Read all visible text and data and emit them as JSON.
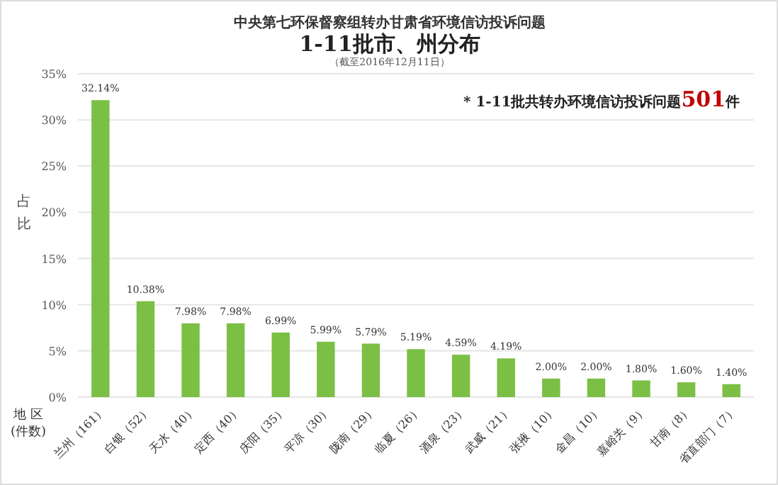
{
  "chart_data": {
    "type": "bar",
    "title": "中央第七环保督察组转办甘肃省环境信访投诉问题",
    "subtitle": "1-11批市、州分布",
    "annotations": [
      "（截至2016年12月11日）",
      "* 1-11批共转办环境信访投诉问题**501**件"
    ],
    "xlabel": "地 区\n(件数)",
    "ylabel": "占比",
    "categories": [
      "兰州（161）",
      "白银（52）",
      "天水（40）",
      "定西（40）",
      "庆阳（35）",
      "平凉（30）",
      "陇南（29）",
      "临夏（26）",
      "酒泉（23）",
      "武威（21）",
      "张掖（10）",
      "金昌（10）",
      "嘉峪关（9）",
      "甘南（8）",
      "省直部门（7）"
    ],
    "values": [
      32.14,
      10.38,
      7.98,
      7.98,
      6.99,
      5.99,
      5.79,
      5.19,
      4.59,
      4.19,
      2.0,
      2.0,
      1.8,
      1.6,
      1.4
    ],
    "value_labels": [
      "32.14%",
      "10.38%",
      "7.98%",
      "7.98%",
      "6.99%",
      "5.99%",
      "5.79%",
      "5.19%",
      "4.59%",
      "4.19%",
      "2.00%",
      "2.00%",
      "1.80%",
      "1.60%",
      "1.40%"
    ],
    "color": "#7cbf45",
    "ylim": [
      0,
      35
    ],
    "yticks": [
      {
        "value": 0,
        "label": "0%"
      },
      {
        "value": 5,
        "label": "5%"
      },
      {
        "value": 10,
        "label": "10%"
      },
      {
        "value": 15,
        "label": "15%"
      },
      {
        "value": 20,
        "label": "20%"
      },
      {
        "value": 25,
        "label": "25%"
      },
      {
        "value": 30,
        "label": "30%"
      },
      {
        "value": 35,
        "label": "35%"
      }
    ],
    "grid": "y"
  }
}
